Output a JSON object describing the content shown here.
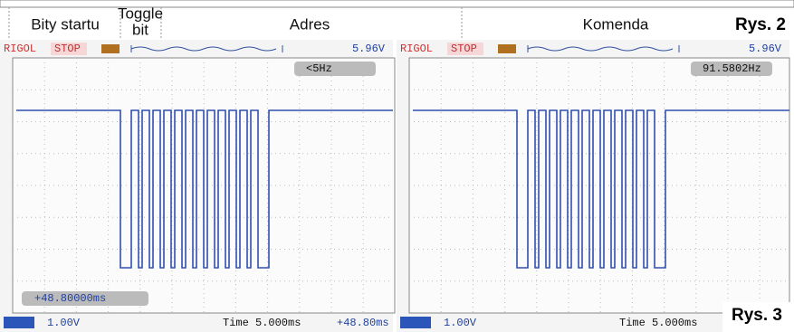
{
  "header": {
    "labels": [
      "Bity startu",
      "Toggle",
      "bit",
      "Adres",
      "Komenda"
    ],
    "figure": "Rys. 2"
  },
  "scopes": [
    {
      "brand": "RIGOL",
      "status": "STOP",
      "trigger_level": "5.96V",
      "frequency": "<5Hz",
      "offset_box": "+48.80000ms",
      "channel_scale": "1.00V",
      "timebase": "Time 5.000ms",
      "offset": "+48.80ms"
    },
    {
      "brand": "RIGOL",
      "status": "STOP",
      "trigger_level": "5.96V",
      "frequency": "91.5802Hz",
      "channel_scale": "1.00V",
      "timebase": "Time 5.000ms"
    }
  ],
  "figure": "Rys. 3"
}
